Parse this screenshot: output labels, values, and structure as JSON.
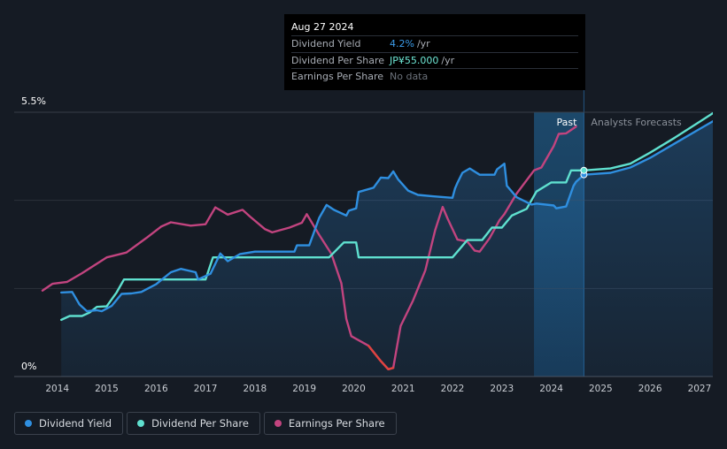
{
  "tooltip": {
    "date": "Aug 27 2024",
    "rows": [
      {
        "label": "Dividend Yield",
        "value": "4.2%",
        "unit": "/yr"
      },
      {
        "label": "Dividend Per Share",
        "value": "JP¥55.000",
        "unit": "/yr"
      },
      {
        "label": "Earnings Per Share",
        "value": "No data",
        "unit": ""
      }
    ]
  },
  "legend": [
    {
      "label": "Dividend Yield",
      "color": "#2f8fe0"
    },
    {
      "label": "Dividend Per Share",
      "color": "#5fe0cf"
    },
    {
      "label": "Earnings Per Share",
      "color": "#c2447f"
    }
  ],
  "chart_data": {
    "type": "line",
    "title": "",
    "y_axis": {
      "top_label": "5.5%",
      "bottom_label": "0%",
      "ylim": [
        0,
        5.5
      ]
    },
    "x_axis": {
      "ticks": [
        "2014",
        "2015",
        "2016",
        "2017",
        "2018",
        "2019",
        "2020",
        "2021",
        "2022",
        "2023",
        "2024",
        "2025",
        "2026",
        "2027"
      ],
      "xlim": [
        2013.7,
        2027.27
      ]
    },
    "regions": {
      "past_label": "Past",
      "forecast_label": "Analysts Forecasts",
      "past_start": 2023.65,
      "current": 2024.66
    },
    "series": [
      {
        "name": "Dividend Yield",
        "color": "#2f8fe0",
        "x": [
          2014.08,
          2014.3,
          2014.45,
          2014.6,
          2014.8,
          2014.9,
          2015.1,
          2015.3,
          2015.5,
          2015.7,
          2016.0,
          2016.3,
          2016.5,
          2016.8,
          2016.85,
          2017.1,
          2017.3,
          2017.45,
          2017.7,
          2018.0,
          2018.4,
          2018.8,
          2018.85,
          2019.1,
          2019.3,
          2019.45,
          2019.6,
          2019.85,
          2019.9,
          2020.05,
          2020.1,
          2020.4,
          2020.55,
          2020.7,
          2020.8,
          2020.9,
          2021.1,
          2021.3,
          2021.6,
          2022.0,
          2022.05,
          2022.1,
          2022.2,
          2022.35,
          2022.55,
          2022.85,
          2022.9,
          2023.05,
          2023.1,
          2023.3,
          2023.6,
          2023.7,
          2024.05,
          2024.1,
          2024.3,
          2024.45,
          2024.5,
          2024.66,
          2025.2,
          2025.6,
          2026.0,
          2026.5,
          2027.0,
          2027.27
        ],
        "y": [
          1.75,
          1.76,
          1.5,
          1.36,
          1.38,
          1.36,
          1.47,
          1.72,
          1.73,
          1.76,
          1.92,
          2.17,
          2.24,
          2.17,
          2.02,
          2.14,
          2.56,
          2.4,
          2.55,
          2.6,
          2.6,
          2.6,
          2.73,
          2.73,
          3.3,
          3.57,
          3.47,
          3.35,
          3.45,
          3.5,
          3.84,
          3.93,
          4.14,
          4.13,
          4.27,
          4.1,
          3.87,
          3.78,
          3.75,
          3.72,
          3.91,
          4.03,
          4.24,
          4.33,
          4.2,
          4.2,
          4.31,
          4.43,
          3.97,
          3.73,
          3.58,
          3.6,
          3.56,
          3.5,
          3.54,
          3.97,
          4.05,
          4.2,
          4.24,
          4.35,
          4.55,
          4.85,
          5.15,
          5.31
        ]
      },
      {
        "name": "Dividend Per Share",
        "color": "#5fe0cf",
        "x": [
          2014.08,
          2014.25,
          2014.5,
          2014.65,
          2014.8,
          2015.0,
          2015.2,
          2015.35,
          2016.0,
          2016.5,
          2017.0,
          2017.15,
          2017.3,
          2018.0,
          2018.85,
          2019.0,
          2019.5,
          2019.8,
          2020.05,
          2020.1,
          2021.0,
          2022.0,
          2022.1,
          2022.3,
          2022.6,
          2022.8,
          2023.0,
          2023.2,
          2023.5,
          2023.7,
          2024.0,
          2024.15,
          2024.3,
          2024.4,
          2024.66,
          2025.2,
          2025.6,
          2026.0,
          2026.5,
          2027.0,
          2027.27
        ],
        "y": [
          1.18,
          1.26,
          1.26,
          1.33,
          1.45,
          1.46,
          1.75,
          2.02,
          2.02,
          2.02,
          2.02,
          2.48,
          2.48,
          2.48,
          2.48,
          2.48,
          2.48,
          2.79,
          2.79,
          2.48,
          2.48,
          2.48,
          2.6,
          2.84,
          2.84,
          3.1,
          3.1,
          3.35,
          3.49,
          3.85,
          4.04,
          4.04,
          4.04,
          4.29,
          4.29,
          4.33,
          4.43,
          4.66,
          4.97,
          5.3,
          5.48
        ]
      },
      {
        "name": "Earnings Per Share",
        "color": "#c2447f",
        "x": [
          2013.7,
          2013.9,
          2014.2,
          2014.5,
          2015.0,
          2015.4,
          2015.8,
          2016.1,
          2016.3,
          2016.7,
          2017.0,
          2017.2,
          2017.45,
          2017.75,
          2017.9,
          2018.2,
          2018.35,
          2018.7,
          2018.95,
          2019.05,
          2019.3,
          2019.55,
          2019.75,
          2019.85,
          2019.95,
          2020.3,
          2020.55,
          2020.7,
          2020.8,
          2020.95,
          2021.2,
          2021.45,
          2021.65,
          2021.8,
          2021.9,
          2022.1,
          2022.3,
          2022.45,
          2022.55,
          2022.75,
          2022.95,
          2023.05,
          2023.3,
          2023.65,
          2023.8,
          2024.05,
          2024.15,
          2024.3,
          2024.5
        ],
        "y": [
          1.79,
          1.93,
          1.97,
          2.15,
          2.48,
          2.58,
          2.88,
          3.12,
          3.21,
          3.14,
          3.17,
          3.52,
          3.37,
          3.47,
          3.33,
          3.07,
          3.0,
          3.1,
          3.2,
          3.38,
          2.95,
          2.55,
          1.94,
          1.2,
          0.84,
          0.64,
          0.32,
          0.15,
          0.18,
          1.05,
          1.58,
          2.21,
          3.05,
          3.53,
          3.29,
          2.85,
          2.81,
          2.62,
          2.6,
          2.88,
          3.25,
          3.38,
          3.81,
          4.29,
          4.35,
          4.8,
          5.05,
          5.06,
          5.2
        ]
      }
    ]
  }
}
